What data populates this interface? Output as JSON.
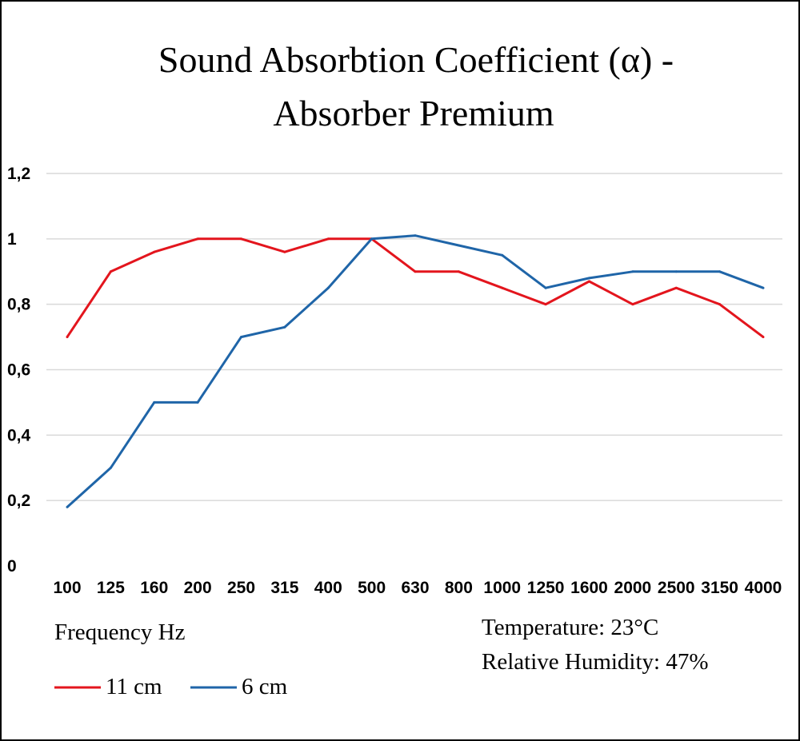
{
  "chart_data": {
    "type": "line",
    "title_lines": [
      "Sound Absorbtion Coefficient (α) -",
      "Absorber Premium"
    ],
    "xlabel": "Frequency Hz",
    "ylabel": "",
    "ylim": [
      0,
      1.2
    ],
    "y_ticks": [
      "0",
      "0,2",
      "0,4",
      "0,6",
      "0,8",
      "1",
      "1,2"
    ],
    "y_tick_values": [
      0,
      0.2,
      0.4,
      0.6,
      0.8,
      1.0,
      1.2
    ],
    "categories": [
      "100",
      "125",
      "160",
      "200",
      "250",
      "315",
      "400",
      "500",
      "630",
      "800",
      "1000",
      "1250",
      "1600",
      "2000",
      "2500",
      "3150",
      "4000"
    ],
    "grid": true,
    "legend_position": "bottom-left",
    "series": [
      {
        "name": "11 cm",
        "color": "#e3151d",
        "values": [
          0.7,
          0.9,
          0.96,
          1.0,
          1.0,
          0.96,
          1.0,
          1.0,
          0.9,
          0.9,
          0.85,
          0.8,
          0.87,
          0.8,
          0.85,
          0.8,
          0.7
        ]
      },
      {
        "name": "6 cm",
        "color": "#1f65a8",
        "values": [
          0.18,
          0.3,
          0.5,
          0.5,
          0.7,
          0.73,
          0.85,
          1.0,
          1.01,
          0.98,
          0.95,
          0.85,
          0.88,
          0.9,
          0.9,
          0.9,
          0.85
        ]
      }
    ]
  },
  "conditions": {
    "temperature": "Temperature: 23°C",
    "humidity": "Relative Humidity: 47%"
  }
}
